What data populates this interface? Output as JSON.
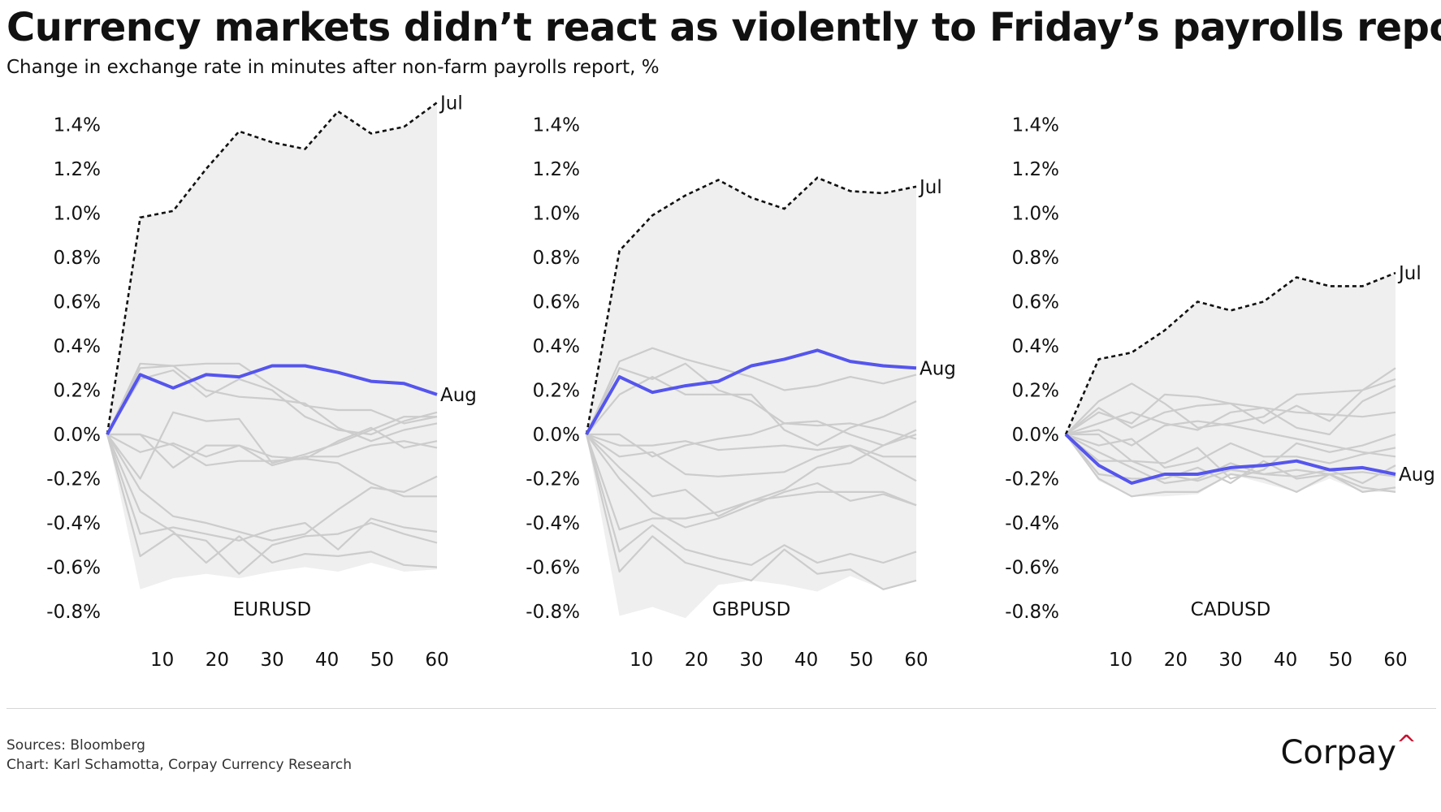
{
  "header": {
    "title": "Currency markets didn’t react as violently to Friday’s payrolls report.",
    "subtitle": "Change in exchange rate in minutes after non-farm payrolls report, %"
  },
  "footer": {
    "sources": "Sources: Bloomberg",
    "credit": "Chart: Karl Schamotta, Corpay Currency Research",
    "logo_text": "Corpay",
    "logo_mark": "^"
  },
  "colors": {
    "band": "#efefef",
    "background_line": "#cccccc",
    "aug": "#5555ee",
    "jul": "#111111"
  },
  "chart_data": [
    {
      "type": "line",
      "label": "EURUSD",
      "x": [
        0,
        6,
        12,
        18,
        24,
        30,
        36,
        42,
        48,
        54,
        60
      ],
      "x_ticks": [
        10,
        20,
        30,
        40,
        50,
        60
      ],
      "y_ticks": [
        -0.8,
        -0.6,
        -0.4,
        -0.2,
        0.0,
        0.2,
        0.4,
        0.6,
        0.8,
        1.0,
        1.2,
        1.4
      ],
      "y_tick_labels": [
        "-0.8%",
        "-0.6%",
        "-0.4%",
        "-0.2%",
        "0.0%",
        "0.2%",
        "0.4%",
        "0.6%",
        "0.8%",
        "1.0%",
        "1.2%",
        "1.4%"
      ],
      "ylim": [
        -0.8,
        1.5
      ],
      "band_lower": [
        0,
        -0.7,
        -0.65,
        -0.63,
        -0.65,
        -0.62,
        -0.6,
        -0.62,
        -0.58,
        -0.62,
        -0.61
      ],
      "series": [
        {
          "name": "Jul",
          "style": "dashed",
          "values": [
            0,
            0.98,
            1.01,
            1.2,
            1.37,
            1.32,
            1.29,
            1.46,
            1.36,
            1.39,
            1.5
          ]
        },
        {
          "name": "Aug",
          "style": "highlight",
          "values": [
            0,
            0.27,
            0.21,
            0.27,
            0.26,
            0.31,
            0.31,
            0.28,
            0.24,
            0.23,
            0.18
          ]
        }
      ],
      "background_series": [
        [
          0,
          0.32,
          0.31,
          0.32,
          0.32,
          0.22,
          0.13,
          0.11,
          0.11,
          0.05,
          0.08
        ],
        [
          0,
          0.3,
          0.31,
          0.2,
          0.17,
          0.16,
          0.14,
          0.03,
          -0.03,
          0.02,
          0.05
        ],
        [
          0,
          0.25,
          0.29,
          0.17,
          0.25,
          0.2,
          0.08,
          0.02,
          0.0,
          0.06,
          0.1
        ],
        [
          0,
          -0.08,
          -0.04,
          -0.1,
          -0.05,
          -0.14,
          -0.1,
          -0.1,
          -0.05,
          -0.03,
          -0.06
        ],
        [
          0,
          -0.2,
          0.1,
          0.06,
          0.07,
          -0.13,
          -0.09,
          -0.04,
          0.02,
          0.08,
          0.08
        ],
        [
          0,
          0.0,
          -0.15,
          -0.05,
          -0.05,
          -0.1,
          -0.11,
          -0.03,
          0.03,
          -0.06,
          -0.03
        ],
        [
          0,
          0.0,
          -0.05,
          -0.14,
          -0.12,
          -0.12,
          -0.11,
          -0.13,
          -0.22,
          -0.28,
          -0.28
        ],
        [
          0,
          -0.25,
          -0.37,
          -0.4,
          -0.44,
          -0.48,
          -0.45,
          -0.34,
          -0.24,
          -0.26,
          -0.19
        ],
        [
          0,
          -0.45,
          -0.42,
          -0.45,
          -0.48,
          -0.43,
          -0.4,
          -0.52,
          -0.38,
          -0.42,
          -0.44
        ],
        [
          0,
          -0.55,
          -0.45,
          -0.48,
          -0.63,
          -0.5,
          -0.46,
          -0.45,
          -0.4,
          -0.45,
          -0.49
        ],
        [
          0,
          -0.35,
          -0.44,
          -0.58,
          -0.46,
          -0.58,
          -0.54,
          -0.55,
          -0.53,
          -0.59,
          -0.6
        ]
      ]
    },
    {
      "type": "line",
      "label": "GBPUSD",
      "x": [
        0,
        6,
        12,
        18,
        24,
        30,
        36,
        42,
        48,
        54,
        60
      ],
      "x_ticks": [
        10,
        20,
        30,
        40,
        50,
        60
      ],
      "y_ticks": [
        -0.8,
        -0.6,
        -0.4,
        -0.2,
        0.0,
        0.2,
        0.4,
        0.6,
        0.8,
        1.0,
        1.2,
        1.4
      ],
      "y_tick_labels": [
        "-0.8%",
        "-0.6%",
        "-0.4%",
        "-0.2%",
        "0.0%",
        "0.2%",
        "0.4%",
        "0.6%",
        "0.8%",
        "1.0%",
        "1.2%",
        "1.4%"
      ],
      "ylim": [
        -0.8,
        1.5
      ],
      "band_lower": [
        0,
        -0.82,
        -0.78,
        -0.83,
        -0.68,
        -0.66,
        -0.68,
        -0.71,
        -0.64,
        -0.7,
        -0.66
      ],
      "series": [
        {
          "name": "Jul",
          "style": "dashed",
          "values": [
            0,
            0.83,
            0.99,
            1.08,
            1.15,
            1.07,
            1.02,
            1.16,
            1.1,
            1.09,
            1.12
          ]
        },
        {
          "name": "Aug",
          "style": "highlight",
          "values": [
            0,
            0.26,
            0.19,
            0.22,
            0.24,
            0.31,
            0.34,
            0.38,
            0.33,
            0.31,
            0.3
          ]
        }
      ],
      "background_series": [
        [
          0,
          0.33,
          0.39,
          0.34,
          0.3,
          0.26,
          0.2,
          0.22,
          0.26,
          0.23,
          0.27
        ],
        [
          0,
          0.3,
          0.25,
          0.32,
          0.2,
          0.15,
          0.05,
          0.06,
          0.0,
          -0.05,
          0.02
        ],
        [
          0,
          0.18,
          0.26,
          0.18,
          0.18,
          0.18,
          0.02,
          -0.05,
          0.03,
          0.08,
          0.15
        ],
        [
          0,
          0.0,
          -0.1,
          -0.05,
          -0.02,
          0.0,
          0.05,
          0.04,
          0.05,
          0.02,
          -0.02
        ],
        [
          0,
          -0.1,
          -0.08,
          -0.18,
          -0.19,
          -0.18,
          -0.17,
          -0.1,
          -0.05,
          -0.13,
          -0.21
        ],
        [
          0,
          -0.05,
          -0.05,
          -0.03,
          -0.07,
          -0.06,
          -0.05,
          -0.07,
          -0.05,
          -0.1,
          -0.1
        ],
        [
          0,
          -0.15,
          -0.28,
          -0.25,
          -0.37,
          -0.3,
          -0.25,
          -0.15,
          -0.13,
          -0.05,
          0.0
        ],
        [
          0,
          -0.2,
          -0.35,
          -0.42,
          -0.38,
          -0.32,
          -0.26,
          -0.22,
          -0.3,
          -0.27,
          -0.32
        ],
        [
          0,
          -0.43,
          -0.38,
          -0.38,
          -0.35,
          -0.3,
          -0.28,
          -0.26,
          -0.26,
          -0.26,
          -0.32
        ],
        [
          0,
          -0.53,
          -0.41,
          -0.52,
          -0.56,
          -0.59,
          -0.5,
          -0.58,
          -0.54,
          -0.58,
          -0.53
        ],
        [
          0,
          -0.62,
          -0.46,
          -0.58,
          -0.62,
          -0.66,
          -0.52,
          -0.63,
          -0.61,
          -0.7,
          -0.66
        ]
      ]
    },
    {
      "type": "line",
      "label": "CADUSD",
      "x": [
        0,
        6,
        12,
        18,
        24,
        30,
        36,
        42,
        48,
        54,
        60
      ],
      "x_ticks": [
        10,
        20,
        30,
        40,
        50,
        60
      ],
      "y_ticks": [
        -0.8,
        -0.6,
        -0.4,
        -0.2,
        0.0,
        0.2,
        0.4,
        0.6,
        0.8,
        1.0,
        1.2,
        1.4
      ],
      "y_tick_labels": [
        "-0.8%",
        "-0.6%",
        "-0.4%",
        "-0.2%",
        "0.0%",
        "0.2%",
        "0.4%",
        "0.6%",
        "0.8%",
        "1.0%",
        "1.2%",
        "1.4%"
      ],
      "ylim": [
        -0.8,
        1.5
      ],
      "band_lower": [
        0,
        -0.21,
        -0.28,
        -0.28,
        -0.27,
        -0.18,
        -0.22,
        -0.26,
        -0.2,
        -0.26,
        -0.26
      ],
      "series": [
        {
          "name": "Jul",
          "style": "dashed",
          "values": [
            0,
            0.34,
            0.37,
            0.47,
            0.6,
            0.56,
            0.6,
            0.71,
            0.67,
            0.67,
            0.73
          ]
        },
        {
          "name": "Aug",
          "style": "highlight",
          "values": [
            0,
            -0.14,
            -0.22,
            -0.18,
            -0.18,
            -0.15,
            -0.14,
            -0.12,
            -0.16,
            -0.15,
            -0.18
          ]
        }
      ],
      "background_series": [
        [
          0,
          0.15,
          0.23,
          0.14,
          0.03,
          0.05,
          0.08,
          0.18,
          0.19,
          0.2,
          0.3
        ],
        [
          0,
          0.1,
          0.05,
          0.18,
          0.17,
          0.14,
          0.05,
          0.13,
          0.06,
          0.2,
          0.25
        ],
        [
          0,
          0.12,
          0.03,
          0.1,
          0.13,
          0.14,
          0.12,
          0.1,
          0.09,
          0.08,
          0.1
        ],
        [
          0,
          0.05,
          0.1,
          0.05,
          0.02,
          0.1,
          0.12,
          0.03,
          0.0,
          0.15,
          0.22
        ],
        [
          0,
          0.02,
          -0.05,
          0.04,
          0.06,
          0.04,
          0.01,
          -0.02,
          -0.05,
          -0.08,
          -0.1
        ],
        [
          0,
          0.0,
          -0.12,
          -0.13,
          -0.06,
          -0.2,
          -0.16,
          -0.04,
          -0.08,
          -0.05,
          0.0
        ],
        [
          0,
          -0.05,
          -0.02,
          -0.15,
          -0.12,
          -0.04,
          -0.1,
          -0.1,
          -0.13,
          -0.09,
          -0.06
        ],
        [
          0,
          -0.12,
          -0.12,
          -0.18,
          -0.21,
          -0.16,
          -0.18,
          -0.19,
          -0.16,
          -0.22,
          -0.14
        ],
        [
          0,
          -0.18,
          -0.2,
          -0.2,
          -0.15,
          -0.22,
          -0.12,
          -0.2,
          -0.18,
          -0.24,
          -0.26
        ],
        [
          0,
          -0.2,
          -0.28,
          -0.26,
          -0.26,
          -0.18,
          -0.2,
          -0.26,
          -0.18,
          -0.26,
          -0.24
        ],
        [
          0,
          -0.08,
          -0.15,
          -0.22,
          -0.2,
          -0.13,
          -0.18,
          -0.16,
          -0.18,
          -0.17,
          -0.19
        ]
      ]
    }
  ]
}
